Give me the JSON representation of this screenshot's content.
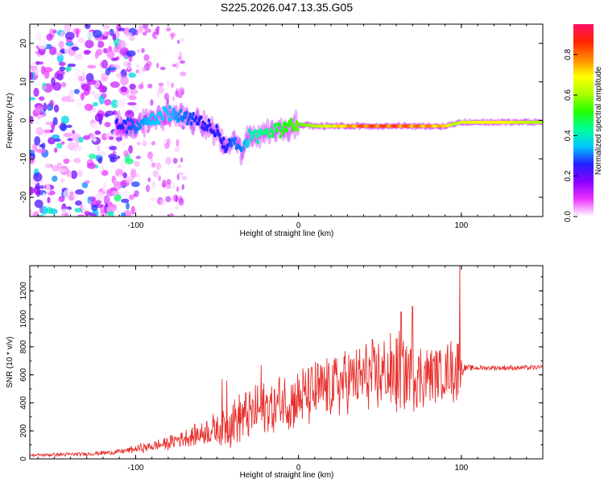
{
  "title": "S225.2026.047.13.35.G05",
  "chart_data": [
    {
      "type": "heatmap",
      "name": "spectrogram",
      "xlabel": "Height of straight line (km)",
      "ylabel": "Frequency (Hz)",
      "xlim": [
        -165,
        150
      ],
      "ylim": [
        -25,
        25
      ],
      "xticks": [
        -100,
        0,
        100
      ],
      "yticks": [
        -20,
        -10,
        0,
        10,
        20
      ],
      "colorbar": {
        "label": "Normalized spectral amplitude",
        "range": [
          0,
          0.95
        ],
        "ticks": [
          0.0,
          0.2,
          0.4,
          0.6,
          0.8
        ],
        "tick_labels": [
          "0.0",
          "0.2",
          "0.4",
          "0.6",
          "0.8"
        ],
        "colors": [
          "#ffffff",
          "#ee33ff",
          "#8800ff",
          "#2222ff",
          "#00c8ff",
          "#00ff99",
          "#22ff00",
          "#aaff00",
          "#ffff00",
          "#ff8800",
          "#ff2200",
          "#ff1166"
        ]
      },
      "ridge": {
        "x": [
          -110,
          -100,
          -90,
          -80,
          -70,
          -60,
          -50,
          -45,
          -40,
          -35,
          -30,
          -20,
          -10,
          0,
          10,
          20,
          40,
          60,
          80,
          90,
          95,
          100,
          120,
          150
        ],
        "freq": [
          -1,
          -1.5,
          0,
          2,
          1,
          -1,
          -3,
          -7,
          -5,
          -8,
          -4,
          -3,
          -2,
          -1,
          -1.5,
          -1.5,
          -1.5,
          -1.5,
          -1.5,
          -1.5,
          -1,
          -0.5,
          -0.5,
          -0.5
        ],
        "amplitude": [
          0.25,
          0.3,
          0.35,
          0.35,
          0.3,
          0.25,
          0.25,
          0.25,
          0.3,
          0.3,
          0.4,
          0.45,
          0.5,
          0.55,
          0.6,
          0.7,
          0.85,
          0.85,
          0.8,
          0.75,
          0.6,
          0.65,
          0.7,
          0.6
        ]
      }
    },
    {
      "type": "line",
      "name": "snr",
      "xlabel": "Height of straight line (km)",
      "ylabel": "SNR (10 * v/v)",
      "xlim": [
        -165,
        150
      ],
      "ylim": [
        0,
        1380
      ],
      "xticks": [
        -100,
        0,
        100
      ],
      "yticks": [
        0,
        200,
        400,
        600,
        800,
        1000,
        1200
      ],
      "color": "#e8312e",
      "series": [
        {
          "name": "SNR",
          "x": [
            -165,
            -150,
            -130,
            -110,
            -100,
            -90,
            -80,
            -75,
            -70,
            -65,
            -60,
            -55,
            -50,
            -45,
            -42,
            -40,
            -35,
            -30,
            -25,
            -20,
            -15,
            -10,
            -5,
            0,
            5,
            10,
            15,
            20,
            25,
            30,
            35,
            40,
            45,
            50,
            55,
            60,
            65,
            70,
            75,
            80,
            85,
            90,
            95,
            97,
            99,
            100,
            101,
            103,
            110,
            120,
            130,
            140,
            150
          ],
          "mean": [
            25,
            30,
            35,
            50,
            70,
            90,
            110,
            140,
            150,
            160,
            180,
            200,
            220,
            250,
            260,
            280,
            300,
            320,
            340,
            360,
            380,
            400,
            410,
            430,
            450,
            470,
            500,
            520,
            540,
            560,
            570,
            580,
            590,
            600,
            600,
            610,
            600,
            600,
            600,
            610,
            620,
            620,
            640,
            640,
            640,
            640,
            650,
            650,
            650,
            650,
            650,
            650,
            650
          ],
          "amp": [
            10,
            15,
            15,
            20,
            30,
            40,
            50,
            60,
            70,
            80,
            100,
            110,
            140,
            180,
            200,
            180,
            200,
            200,
            220,
            230,
            230,
            230,
            240,
            240,
            240,
            250,
            250,
            250,
            260,
            260,
            260,
            270,
            280,
            290,
            290,
            330,
            340,
            300,
            260,
            230,
            220,
            210,
            250,
            300,
            320,
            120,
            50,
            25,
            20,
            20,
            20,
            20,
            20
          ],
          "peaks": [
            {
              "x": -47,
              "y": 570
            },
            {
              "x": -44,
              "y": 560
            },
            {
              "x": -23,
              "y": 670
            },
            {
              "x": 63,
              "y": 1050
            },
            {
              "x": 70,
              "y": 1090
            },
            {
              "x": 99,
              "y": 1380
            }
          ]
        }
      ]
    }
  ]
}
